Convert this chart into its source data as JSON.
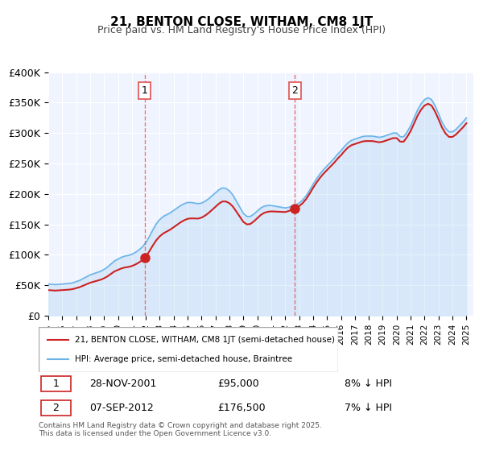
{
  "title": "21, BENTON CLOSE, WITHAM, CM8 1JT",
  "subtitle": "Price paid vs. HM Land Registry's House Price Index (HPI)",
  "xlabel": "",
  "ylabel": "",
  "ylim": [
    0,
    400000
  ],
  "yticks": [
    0,
    50000,
    100000,
    150000,
    200000,
    250000,
    300000,
    350000,
    400000
  ],
  "ytick_labels": [
    "£0",
    "£50K",
    "£100K",
    "£150K",
    "£200K",
    "£250K",
    "£300K",
    "£350K",
    "£400K"
  ],
  "xlim_start": 1995.0,
  "xlim_end": 2025.5,
  "background_color": "#ffffff",
  "plot_bg_color": "#f0f4ff",
  "grid_color": "#ffffff",
  "hpi_color": "#6cb4e8",
  "price_color": "#cc2222",
  "marker1_date": 2001.91,
  "marker1_price": 95000,
  "marker1_label": "1",
  "marker2_date": 2012.69,
  "marker2_price": 176500,
  "marker2_label": "2",
  "vline_color": "#e05050",
  "sale_label": "21, BENTON CLOSE, WITHAM, CM8 1JT (semi-detached house)",
  "hpi_label": "HPI: Average price, semi-detached house, Braintree",
  "table_row1": [
    "1",
    "28-NOV-2001",
    "£95,000",
    "8% ↓ HPI"
  ],
  "table_row2": [
    "2",
    "07-SEP-2012",
    "£176,500",
    "7% ↓ HPI"
  ],
  "footer": "Contains HM Land Registry data © Crown copyright and database right 2025.\nThis data is licensed under the Open Government Licence v3.0.",
  "hpi_data": {
    "years": [
      1995.0,
      1995.25,
      1995.5,
      1995.75,
      1996.0,
      1996.25,
      1996.5,
      1996.75,
      1997.0,
      1997.25,
      1997.5,
      1997.75,
      1998.0,
      1998.25,
      1998.5,
      1998.75,
      1999.0,
      1999.25,
      1999.5,
      1999.75,
      2000.0,
      2000.25,
      2000.5,
      2000.75,
      2001.0,
      2001.25,
      2001.5,
      2001.75,
      2002.0,
      2002.25,
      2002.5,
      2002.75,
      2003.0,
      2003.25,
      2003.5,
      2003.75,
      2004.0,
      2004.25,
      2004.5,
      2004.75,
      2005.0,
      2005.25,
      2005.5,
      2005.75,
      2006.0,
      2006.25,
      2006.5,
      2006.75,
      2007.0,
      2007.25,
      2007.5,
      2007.75,
      2008.0,
      2008.25,
      2008.5,
      2008.75,
      2009.0,
      2009.25,
      2009.5,
      2009.75,
      2010.0,
      2010.25,
      2010.5,
      2010.75,
      2011.0,
      2011.25,
      2011.5,
      2011.75,
      2012.0,
      2012.25,
      2012.5,
      2012.75,
      2013.0,
      2013.25,
      2013.5,
      2013.75,
      2014.0,
      2014.25,
      2014.5,
      2014.75,
      2015.0,
      2015.25,
      2015.5,
      2015.75,
      2016.0,
      2016.25,
      2016.5,
      2016.75,
      2017.0,
      2017.25,
      2017.5,
      2017.75,
      2018.0,
      2018.25,
      2018.5,
      2018.75,
      2019.0,
      2019.25,
      2019.5,
      2019.75,
      2020.0,
      2020.25,
      2020.5,
      2020.75,
      2021.0,
      2021.25,
      2021.5,
      2021.75,
      2022.0,
      2022.25,
      2022.5,
      2022.75,
      2023.0,
      2023.25,
      2023.5,
      2023.75,
      2024.0,
      2024.25,
      2024.5,
      2024.75,
      2025.0
    ],
    "values": [
      52000,
      51500,
      51000,
      51500,
      52000,
      52500,
      53000,
      54000,
      56000,
      58000,
      61000,
      64000,
      67000,
      69000,
      71000,
      73000,
      76000,
      80000,
      85000,
      90000,
      93000,
      96000,
      98000,
      99000,
      101000,
      104000,
      108000,
      113000,
      120000,
      130000,
      141000,
      151000,
      158000,
      163000,
      166000,
      169000,
      173000,
      177000,
      181000,
      184000,
      186000,
      186000,
      185000,
      184000,
      185000,
      188000,
      192000,
      197000,
      202000,
      207000,
      210000,
      209000,
      205000,
      198000,
      188000,
      178000,
      168000,
      163000,
      163000,
      167000,
      172000,
      177000,
      180000,
      181000,
      181000,
      180000,
      179000,
      178000,
      177000,
      178000,
      180000,
      182000,
      185000,
      190000,
      197000,
      206000,
      216000,
      225000,
      233000,
      240000,
      246000,
      252000,
      258000,
      265000,
      271000,
      278000,
      284000,
      288000,
      290000,
      292000,
      294000,
      295000,
      295000,
      295000,
      294000,
      293000,
      294000,
      296000,
      298000,
      300000,
      300000,
      294000,
      294000,
      302000,
      312000,
      325000,
      338000,
      348000,
      355000,
      358000,
      355000,
      345000,
      332000,
      318000,
      308000,
      302000,
      302000,
      306000,
      312000,
      318000,
      325000
    ]
  },
  "price_data": {
    "years": [
      1995.3,
      1995.7,
      1996.5,
      1997.5,
      1998.2,
      2001.91,
      2012.69
    ],
    "values": [
      52000,
      50000,
      55000,
      60000,
      62000,
      95000,
      176500
    ]
  }
}
